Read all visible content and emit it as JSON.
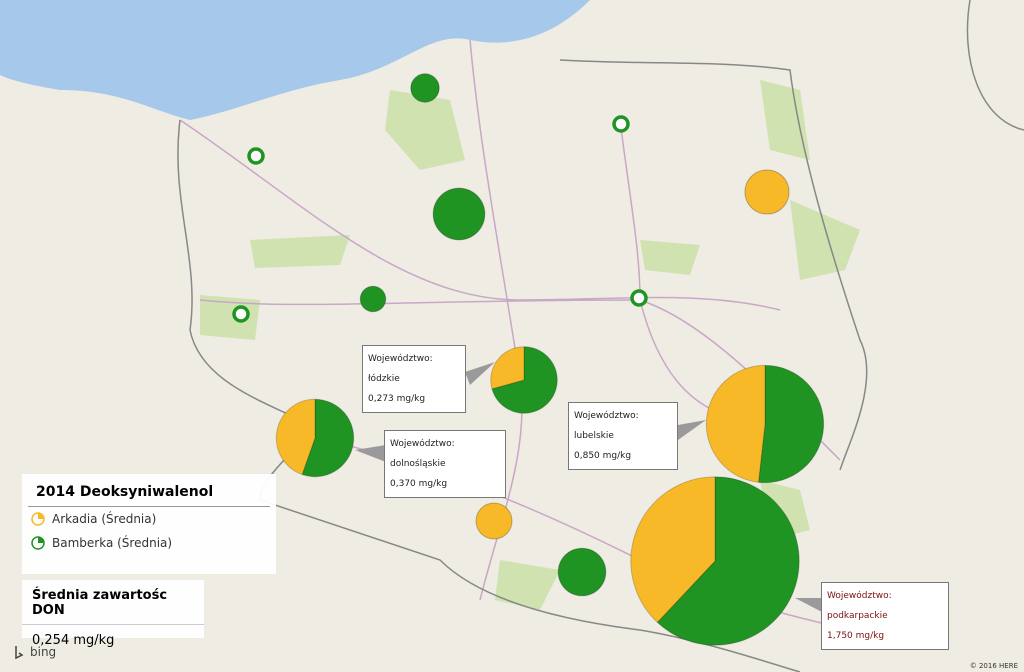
{
  "legend": {
    "title": "2014 Deoksyniwalenol",
    "items": [
      {
        "label": "Arkadia (Średnia)",
        "color": "#f7b927"
      },
      {
        "label": "Bamberka (Średnia)",
        "color": "#1f9423"
      }
    ]
  },
  "summary": {
    "title": "Średnia zawartośc DON",
    "value": "0,254 mg/kg"
  },
  "callouts": [
    {
      "region": "Województwo: łódzkie",
      "value": "0,273 mg/kg"
    },
    {
      "region": "Województwo: dolnośląskie",
      "value": "0,370 mg/kg"
    },
    {
      "region": "Województwo: lubelskie",
      "value": "0,850 mg/kg"
    },
    {
      "region": "Województwo: podkarpackie",
      "value": "1,750 mg/kg"
    }
  ],
  "pies": [
    {
      "values": [
        0.16,
        0.386
      ]
    },
    {
      "values": [
        0.33,
        0.41
      ]
    },
    {
      "values": [
        0.82,
        0.88
      ]
    },
    {
      "values": [
        1.33,
        2.17
      ]
    },
    {
      "values": [
        0,
        0.1
      ]
    },
    {
      "values": [
        0,
        0.33
      ]
    },
    {
      "values": [
        0,
        0.08
      ]
    },
    {
      "values": [
        0,
        0.28
      ]
    },
    {
      "values": [
        0.24,
        0
      ]
    },
    {
      "values": [
        0.16,
        0
      ]
    },
    {
      "values": [
        0,
        0.04
      ]
    },
    {
      "values": [
        0,
        0.04
      ]
    },
    {
      "values": [
        0,
        0.04
      ]
    },
    {
      "values": [
        0,
        0.04
      ]
    }
  ],
  "brand": "bing",
  "copyright": "© 2016 HERE"
}
